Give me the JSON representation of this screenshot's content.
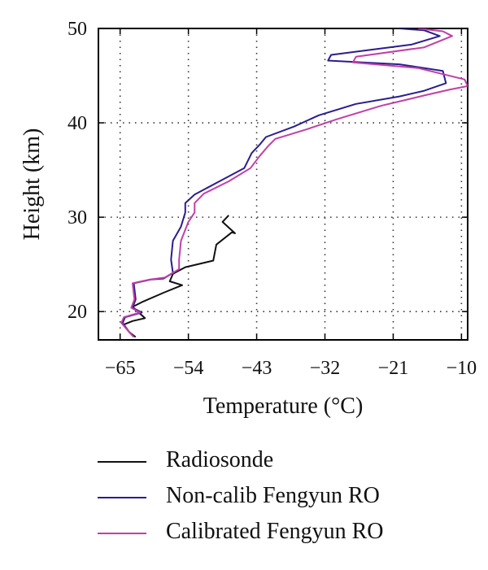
{
  "chart_data": {
    "type": "line",
    "xlabel": "Temperature (°C)",
    "ylabel": "Height (km)",
    "xlim": [
      -68.5,
      -9
    ],
    "ylim": [
      17,
      50
    ],
    "xticks": [
      -65,
      -54,
      -43,
      -32,
      -21,
      -10
    ],
    "yticks": [
      20,
      30,
      40,
      50
    ],
    "xtick_labels": [
      "−65",
      "−54",
      "−43",
      "−32",
      "−21",
      "−10"
    ],
    "ytick_labels": [
      "20",
      "30",
      "40",
      "50"
    ],
    "grid": true,
    "legend_position": "below",
    "series": [
      {
        "name": "Radiosonde",
        "color": "#111111",
        "points": [
          [
            -62.5,
            17.3
          ],
          [
            -63.5,
            17.8
          ],
          [
            -64.5,
            18.6
          ],
          [
            -63,
            19
          ],
          [
            -61,
            19.3
          ],
          [
            -63,
            20.5
          ],
          [
            -61.5,
            21
          ],
          [
            -58,
            22
          ],
          [
            -55,
            22.8
          ],
          [
            -57,
            23.2
          ],
          [
            -56.5,
            24
          ],
          [
            -54.5,
            24.7
          ],
          [
            -50,
            25.4
          ],
          [
            -49.5,
            27.1
          ],
          [
            -47,
            28.4
          ],
          [
            -46.5,
            28.3
          ],
          [
            -48.5,
            29.5
          ],
          [
            -47.5,
            30.2
          ]
        ]
      },
      {
        "name": "Non-calib Fengyun RO",
        "color": "#2b1d8f",
        "points": [
          [
            -62.8,
            17.3
          ],
          [
            -63.5,
            17.8
          ],
          [
            -64.6,
            18.8
          ],
          [
            -64.2,
            19.4
          ],
          [
            -61.5,
            19.9
          ],
          [
            -63,
            20.4
          ],
          [
            -62.5,
            21.3
          ],
          [
            -62.8,
            23
          ],
          [
            -60,
            23.4
          ],
          [
            -58,
            23.5
          ],
          [
            -56.5,
            24.1
          ],
          [
            -56.8,
            25.5
          ],
          [
            -56.5,
            27.5
          ],
          [
            -55.2,
            29
          ],
          [
            -54.5,
            30.5
          ],
          [
            -54.5,
            31.5
          ],
          [
            -53,
            32.4
          ],
          [
            -49,
            33.8
          ],
          [
            -45,
            35.2
          ],
          [
            -43.8,
            36.8
          ],
          [
            -42.5,
            37.7
          ],
          [
            -41.5,
            38.5
          ],
          [
            -37,
            39.6
          ],
          [
            -33,
            40.8
          ],
          [
            -27,
            42
          ],
          [
            -20,
            42.8
          ],
          [
            -16,
            43.4
          ],
          [
            -12.5,
            44.2
          ],
          [
            -13,
            45.5
          ],
          [
            -20,
            46.2
          ],
          [
            -31.5,
            46.6
          ],
          [
            -31,
            47.2
          ],
          [
            -18,
            48.3
          ],
          [
            -13.5,
            49.2
          ],
          [
            -16,
            49.8
          ],
          [
            -20,
            50
          ]
        ]
      },
      {
        "name": "Calibrated Fengyun RO",
        "color": "#c03fa6",
        "points": [
          [
            -62.8,
            17.3
          ],
          [
            -63.5,
            17.8
          ],
          [
            -64.8,
            18.8
          ],
          [
            -64.4,
            19.4
          ],
          [
            -61.8,
            19.9
          ],
          [
            -63.2,
            20.4
          ],
          [
            -62.7,
            21.3
          ],
          [
            -63,
            23
          ],
          [
            -60.2,
            23.4
          ],
          [
            -57.8,
            23.6
          ],
          [
            -55.5,
            24.5
          ],
          [
            -55.5,
            25.5
          ],
          [
            -55.2,
            27.5
          ],
          [
            -54,
            29.5
          ],
          [
            -53,
            30.5
          ],
          [
            -53,
            31.5
          ],
          [
            -51.5,
            32.5
          ],
          [
            -47.5,
            33.8
          ],
          [
            -44,
            35.2
          ],
          [
            -42.5,
            36.5
          ],
          [
            -41.2,
            37.5
          ],
          [
            -40,
            38.3
          ],
          [
            -35,
            39.3
          ],
          [
            -30,
            40.4
          ],
          [
            -23,
            41.8
          ],
          [
            -16,
            42.9
          ],
          [
            -12,
            43.5
          ],
          [
            -9,
            43.9
          ],
          [
            -9.5,
            44.6
          ],
          [
            -17,
            45.8
          ],
          [
            -27.5,
            46.4
          ],
          [
            -27,
            47
          ],
          [
            -16,
            48
          ],
          [
            -11.5,
            49.2
          ],
          [
            -13,
            49.7
          ],
          [
            -17,
            50
          ]
        ]
      }
    ]
  }
}
